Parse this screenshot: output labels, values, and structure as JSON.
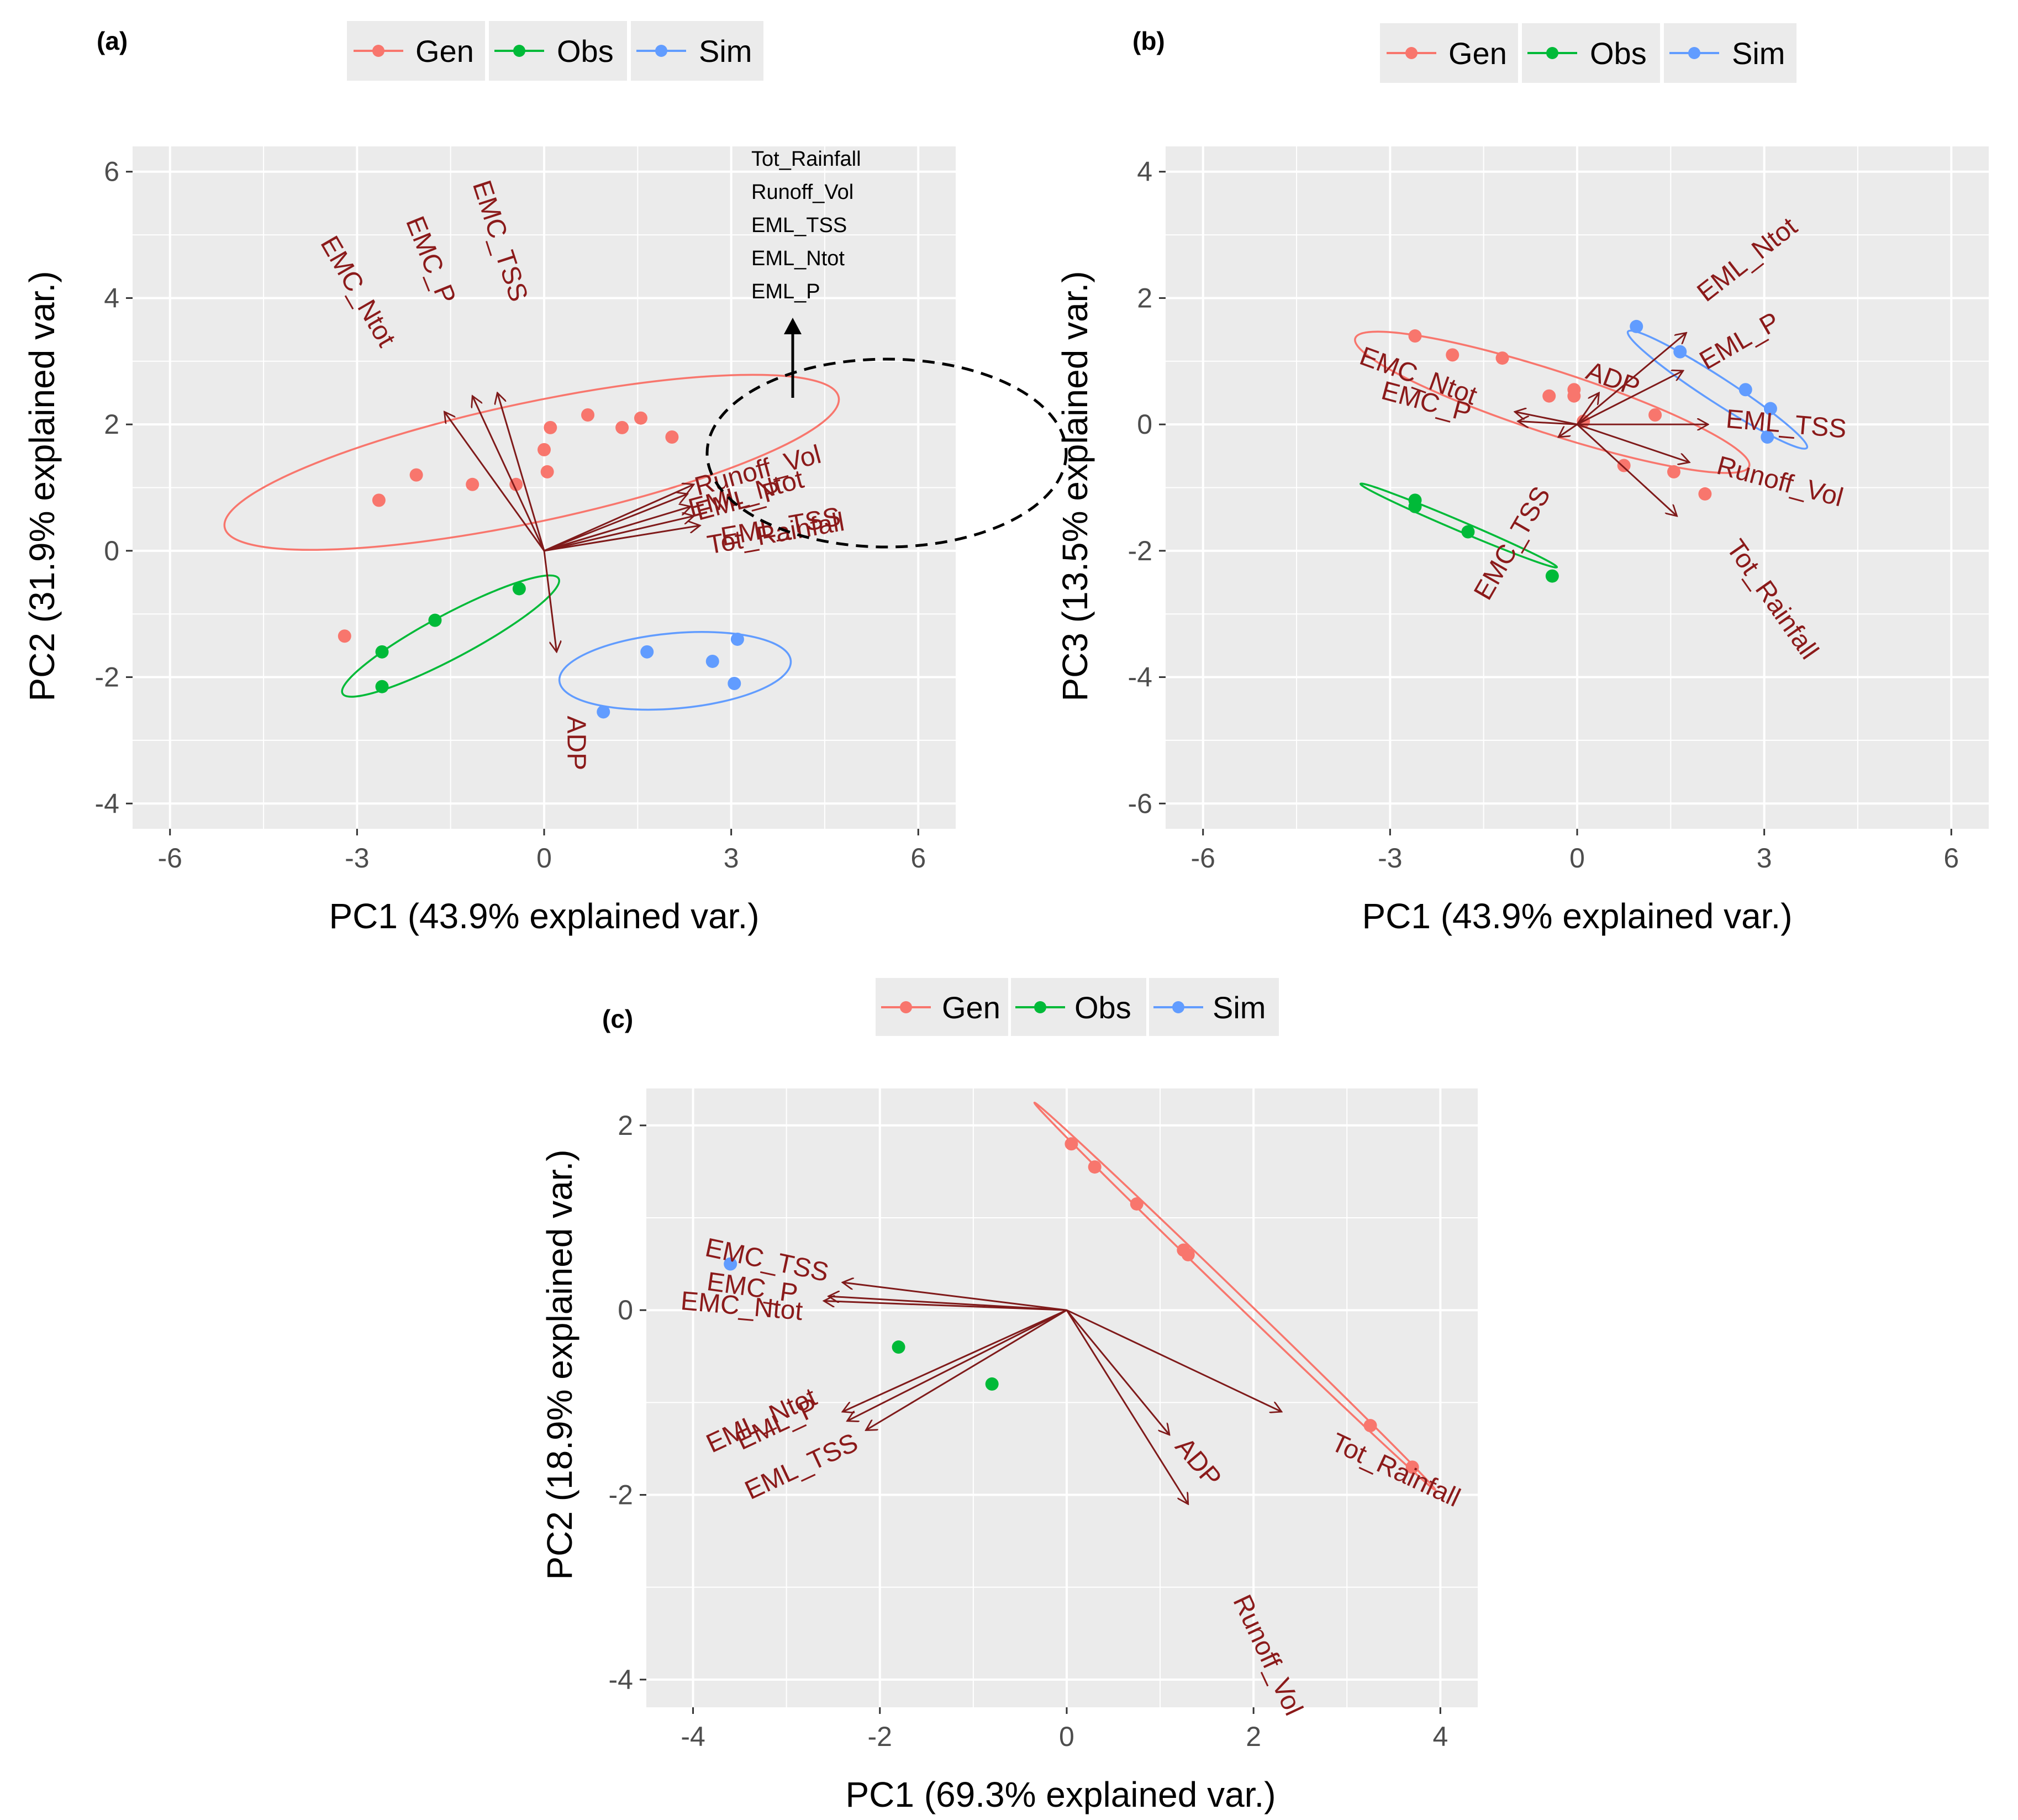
{
  "colors": {
    "Gen": "#f8766d",
    "Obs": "#00ba38",
    "Sim": "#619cff",
    "arrow": "#7f1a1a",
    "label": "#8b1a1a",
    "panel": "#ebebeb",
    "grid": "#ffffff"
  },
  "legend": {
    "items": [
      "Gen",
      "Obs",
      "Sim"
    ]
  },
  "chart_data": [
    {
      "panel": "(a)",
      "type": "scatter",
      "xlabel": "PC1 (43.9% explained var.)",
      "ylabel": "PC2 (31.9% explained var.)",
      "xlim": [
        -6.6,
        6.6
      ],
      "ylim": [
        -4.4,
        6.4
      ],
      "xticks": [
        -6,
        -3,
        0,
        3,
        6
      ],
      "yticks": [
        -4,
        -2,
        0,
        2,
        4,
        6
      ],
      "series": [
        {
          "name": "Gen",
          "points": [
            [
              -3.2,
              -1.35
            ],
            [
              -2.65,
              0.8
            ],
            [
              -2.05,
              1.2
            ],
            [
              -1.15,
              1.05
            ],
            [
              -0.45,
              1.05
            ],
            [
              0.05,
              1.25
            ],
            [
              0.0,
              1.6
            ],
            [
              0.1,
              1.95
            ],
            [
              0.7,
              2.15
            ],
            [
              1.25,
              1.95
            ],
            [
              1.55,
              2.1
            ],
            [
              2.05,
              1.8
            ]
          ]
        },
        {
          "name": "Obs",
          "points": [
            [
              -2.6,
              -1.6
            ],
            [
              -2.6,
              -2.15
            ],
            [
              -1.75,
              -1.1
            ],
            [
              -0.4,
              -0.6
            ]
          ]
        },
        {
          "name": "Sim",
          "points": [
            [
              0.95,
              -2.55
            ],
            [
              1.65,
              -1.6
            ],
            [
              2.7,
              -1.75
            ],
            [
              3.1,
              -1.4
            ],
            [
              3.05,
              -2.1
            ]
          ]
        }
      ],
      "ellipses": [
        {
          "name": "Gen",
          "cx": -0.2,
          "cy": 1.4,
          "rx": 5.0,
          "ry": 0.95,
          "angle_deg": 12
        },
        {
          "name": "Obs",
          "cx": -1.5,
          "cy": -1.35,
          "rx": 1.95,
          "ry": 0.35,
          "angle_deg": 28
        },
        {
          "name": "Sim",
          "cx": 2.1,
          "cy": -1.9,
          "rx": 1.85,
          "ry": 0.6,
          "angle_deg": 5
        }
      ],
      "loadings": [
        {
          "name": "EMC_Ntot",
          "x": -1.6,
          "y": 2.2
        },
        {
          "name": "EMC_P",
          "x": -1.15,
          "y": 2.45
        },
        {
          "name": "EMC_TSS",
          "x": -0.75,
          "y": 2.5
        },
        {
          "name": "ADP",
          "x": 0.2,
          "y": -1.6
        },
        {
          "name": "Runoff_Vol",
          "x": 2.4,
          "y": 1.05
        },
        {
          "name": "EML_Ntot",
          "x": 2.3,
          "y": 0.9
        },
        {
          "name": "EML_TSS",
          "x": 2.4,
          "y": 0.55
        },
        {
          "name": "EML_P",
          "x": 2.35,
          "y": 0.7
        },
        {
          "name": "Tot_Rainfall",
          "x": 2.5,
          "y": 0.4
        }
      ],
      "annotation": {
        "label": "Tot_Rainfall\nRunoff_Vol\nEML_TSS\nEML_Ntot\nEML_P",
        "lines": [
          "Tot_Rainfall",
          "Runoff_Vol",
          "EML_TSS",
          "EML_Ntot",
          "EML_P"
        ]
      }
    },
    {
      "panel": "(b)",
      "type": "scatter",
      "xlabel": "PC1 (43.9% explained var.)",
      "ylabel": "PC3 (13.5% explained var.)",
      "xlim": [
        -6.6,
        6.6
      ],
      "ylim": [
        -6.4,
        4.4
      ],
      "xticks": [
        -6,
        -3,
        0,
        3,
        6
      ],
      "yticks": [
        -6,
        -4,
        -2,
        0,
        2,
        4
      ],
      "series": [
        {
          "name": "Gen",
          "points": [
            [
              -2.6,
              1.4
            ],
            [
              -2.0,
              1.1
            ],
            [
              -1.2,
              1.05
            ],
            [
              -0.45,
              0.45
            ],
            [
              -0.05,
              0.55
            ],
            [
              -0.05,
              0.45
            ],
            [
              0.1,
              0.05
            ],
            [
              0.75,
              -0.65
            ],
            [
              1.25,
              0.15
            ],
            [
              1.55,
              -0.75
            ],
            [
              2.05,
              -1.1
            ]
          ]
        },
        {
          "name": "Obs",
          "points": [
            [
              -2.6,
              -1.2
            ],
            [
              -2.6,
              -1.3
            ],
            [
              -1.75,
              -1.7
            ],
            [
              -0.4,
              -2.4
            ]
          ]
        },
        {
          "name": "Sim",
          "points": [
            [
              0.95,
              1.55
            ],
            [
              1.65,
              1.15
            ],
            [
              2.7,
              0.55
            ],
            [
              3.1,
              0.25
            ],
            [
              3.05,
              -0.2
            ]
          ]
        }
      ],
      "ellipses": [
        {
          "name": "Gen",
          "cx": -0.4,
          "cy": 0.35,
          "rx": 3.3,
          "ry": 0.5,
          "angle_deg": -18
        },
        {
          "name": "Obs",
          "cx": -1.9,
          "cy": -1.6,
          "rx": 1.7,
          "ry": 0.08,
          "angle_deg": -23
        },
        {
          "name": "Sim",
          "cx": 2.25,
          "cy": 0.55,
          "rx": 1.7,
          "ry": 0.2,
          "angle_deg": -33
        }
      ],
      "loadings": [
        {
          "name": "EML_Ntot",
          "x": 1.75,
          "y": 1.45
        },
        {
          "name": "EML_P",
          "x": 1.7,
          "y": 0.85
        },
        {
          "name": "EML_TSS",
          "x": 2.1,
          "y": 0.0
        },
        {
          "name": "Runoff_Vol",
          "x": 1.8,
          "y": -0.6
        },
        {
          "name": "Tot_Rainfall",
          "x": 1.6,
          "y": -1.45
        },
        {
          "name": "EMC_Ntot",
          "x": -1.0,
          "y": 0.2
        },
        {
          "name": "EMC_P",
          "x": -0.95,
          "y": 0.05
        },
        {
          "name": "EMC_TSS",
          "x": -0.3,
          "y": -0.2
        },
        {
          "name": "ADP",
          "x": 0.35,
          "y": 0.5
        }
      ]
    },
    {
      "panel": "(c)",
      "type": "scatter",
      "xlabel": "PC1 (69.3% explained var.)",
      "ylabel": "PC2 (18.9% explained var.)",
      "xlim": [
        -4.5,
        4.4
      ],
      "ylim": [
        -4.3,
        2.4
      ],
      "xticks": [
        -4,
        -2,
        0,
        2,
        4
      ],
      "yticks": [
        -4,
        -2,
        0,
        2
      ],
      "series": [
        {
          "name": "Gen",
          "points": [
            [
              0.05,
              1.8
            ],
            [
              0.3,
              1.55
            ],
            [
              0.75,
              1.15
            ],
            [
              1.25,
              0.65
            ],
            [
              1.3,
              0.6
            ],
            [
              3.25,
              -1.25
            ],
            [
              3.7,
              -1.7
            ]
          ]
        },
        {
          "name": "Obs",
          "points": [
            [
              -1.8,
              -0.4
            ],
            [
              -0.8,
              -0.8
            ]
          ]
        },
        {
          "name": "Sim",
          "points": [
            [
              -3.6,
              0.5
            ]
          ]
        }
      ],
      "ellipses": [
        {
          "name": "Gen",
          "cx": 1.8,
          "cy": 0.15,
          "rx": 3.0,
          "ry": 0.05,
          "angle_deg": -44
        }
      ],
      "loadings": [
        {
          "name": "EMC_TSS",
          "x": -2.4,
          "y": 0.3
        },
        {
          "name": "EMC_P",
          "x": -2.55,
          "y": 0.15
        },
        {
          "name": "EMC_Ntot",
          "x": -2.6,
          "y": 0.1
        },
        {
          "name": "EML_Ntot",
          "x": -2.4,
          "y": -1.1
        },
        {
          "name": "EML_P",
          "x": -2.35,
          "y": -1.2
        },
        {
          "name": "EML_TSS",
          "x": -2.15,
          "y": -1.3
        },
        {
          "name": "ADP",
          "x": 1.1,
          "y": -1.35
        },
        {
          "name": "Runoff_Vol",
          "x": 1.3,
          "y": -2.1
        },
        {
          "name": "Tot_Rainfall",
          "x": 2.3,
          "y": -1.1
        }
      ]
    }
  ]
}
